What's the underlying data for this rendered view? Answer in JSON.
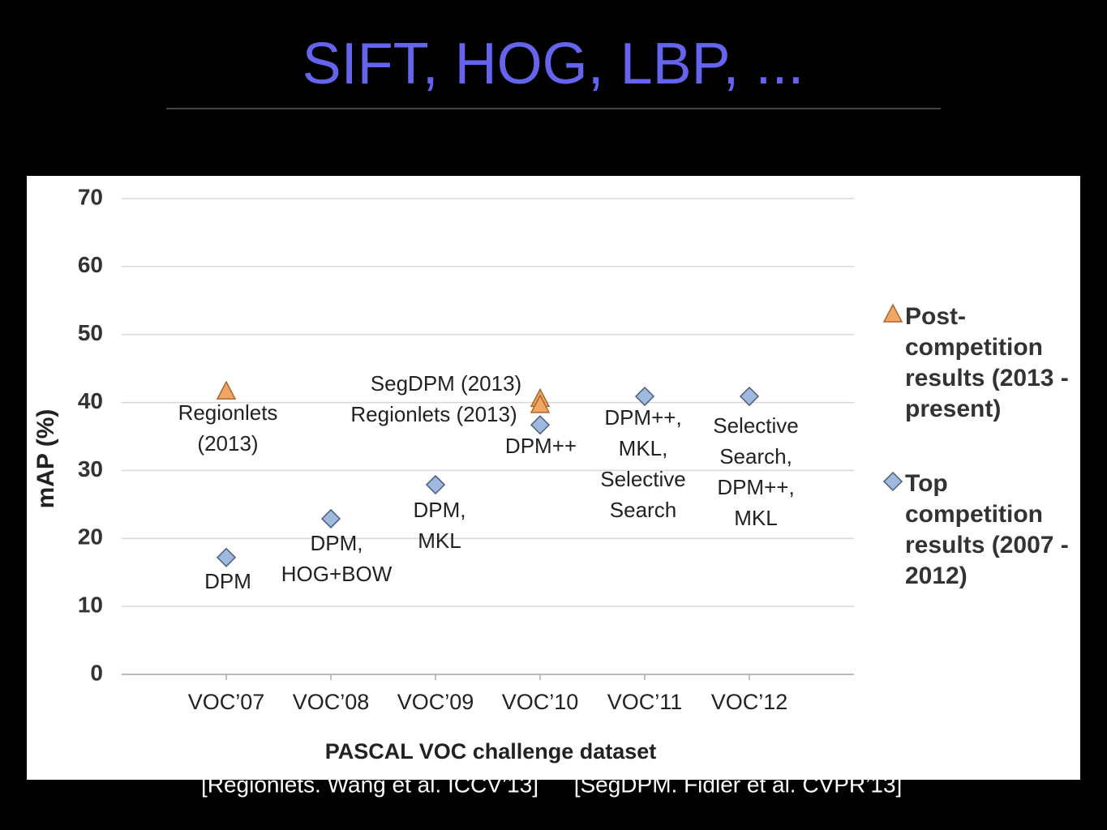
{
  "title": "SIFT, HOG, LBP, ...",
  "citations": [
    "[Regionlets. Wang et al. ICCV’13]",
    "[SegDPM. Fidler et al. CVPR’13]"
  ],
  "chart_data": {
    "type": "scatter",
    "x_label": "PASCAL VOC challenge dataset",
    "y_label": "mAP  (%)",
    "xlim": [
      -1,
      6
    ],
    "xticks": [
      {
        "value": 0,
        "label": "VOC’07"
      },
      {
        "value": 1,
        "label": "VOC’08"
      },
      {
        "value": 2,
        "label": "VOC’09"
      },
      {
        "value": 3,
        "label": "VOC’10"
      },
      {
        "value": 4,
        "label": "VOC’11"
      },
      {
        "value": 5,
        "label": "VOC’12"
      }
    ],
    "ylim": [
      0,
      70
    ],
    "yticks": [
      0,
      10,
      20,
      30,
      40,
      50,
      60,
      70
    ],
    "grid": true,
    "legend": "right",
    "series": [
      {
        "name": "Top competition results (2007 - 2012)",
        "marker": "diamond",
        "color": "#9db9e0",
        "x": [
          0,
          1,
          2,
          3,
          4,
          5
        ],
        "values": [
          17.2,
          22.9,
          27.9,
          36.7,
          40.9,
          40.9
        ],
        "point_labels": [
          [
            "DPM"
          ],
          [
            "DPM,",
            "HOG+BOW"
          ],
          [
            "DPM,",
            "MKL"
          ],
          [
            "DPM++"
          ],
          [
            "DPM++,",
            "MKL,",
            "Selective",
            "Search"
          ],
          [
            "Selective",
            "Search,",
            "DPM++,",
            "MKL"
          ]
        ]
      },
      {
        "name": "Post-competition results (2013 - present)",
        "marker": "triangle",
        "color": "#f2a664",
        "x": [
          0,
          3,
          3
        ],
        "values": [
          41.6,
          40.5,
          39.6
        ],
        "point_labels": [
          [
            "Regionlets",
            "(2013)"
          ],
          [
            "SegDPM (2013)"
          ],
          [
            "Regionlets (2013)"
          ]
        ]
      }
    ]
  }
}
